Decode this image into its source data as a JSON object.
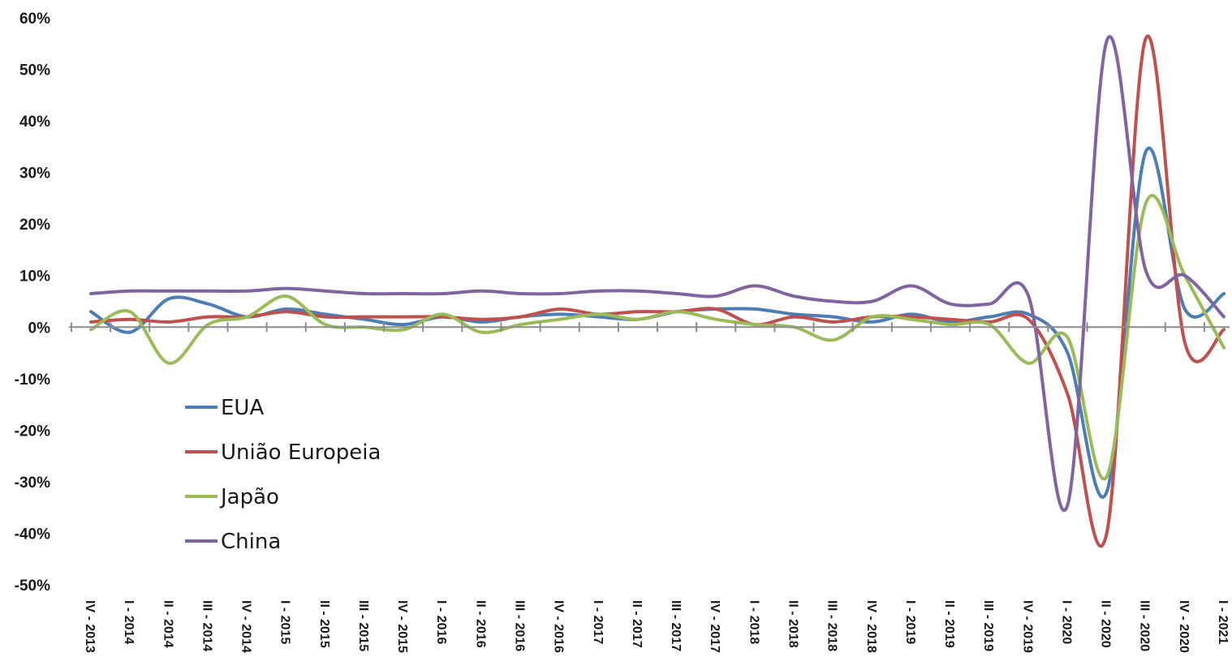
{
  "chart_data": {
    "type": "line",
    "title": "",
    "xlabel": "",
    "ylabel": "",
    "ylim": [
      -50,
      60
    ],
    "y_ticks": [
      60,
      50,
      40,
      30,
      20,
      10,
      0,
      -10,
      -20,
      -30,
      -40,
      -50
    ],
    "y_tick_labels": [
      "60%",
      "50%",
      "40%",
      "30%",
      "20%",
      "10%",
      "0%",
      "-10%",
      "-20%",
      "-30%",
      "-40%",
      "-50%"
    ],
    "grid": false,
    "legend_position": "bottom-left",
    "categories": [
      "IV - 2013",
      "I - 2014",
      "II - 2014",
      "III - 2014",
      "IV - 2014",
      "I - 2015",
      "II - 2015",
      "III - 2015",
      "IV - 2015",
      "I - 2016",
      "II - 2016",
      "III - 2016",
      "IV - 2016",
      "I - 2017",
      "II - 2017",
      "III - 2017",
      "IV - 2017",
      "I - 2018",
      "II - 2018",
      "III - 2018",
      "IV - 2018",
      "I - 2019",
      "II - 2019",
      "III - 2019",
      "IV - 2019",
      "I - 2020",
      "II - 2020",
      "III - 2020",
      "IV - 2020",
      "I - 2021"
    ],
    "series": [
      {
        "name": "EUA",
        "color": "#4a7eb5",
        "values": [
          3,
          -1,
          5.5,
          4.5,
          2,
          3.5,
          2.5,
          1.5,
          0.5,
          2,
          1,
          2,
          2.5,
          2,
          1.5,
          3,
          3.5,
          3.5,
          2.5,
          2,
          1,
          2.5,
          1,
          2,
          2.5,
          -5,
          -32,
          34,
          3.5,
          6.5
        ]
      },
      {
        "name": "União Europeia",
        "color": "#c0504d",
        "values": [
          1,
          1.5,
          1,
          2,
          2,
          3,
          2,
          2,
          2,
          2,
          1.5,
          2,
          3.5,
          2.5,
          3,
          3,
          3.5,
          0.5,
          2,
          1,
          2,
          2,
          1.5,
          1,
          1.5,
          -13,
          -40,
          56,
          -3,
          -0.5
        ]
      },
      {
        "name": "Japão",
        "color": "#9bbb59",
        "values": [
          -0.5,
          3,
          -7,
          0.5,
          2,
          6,
          0.5,
          0,
          -0.5,
          2.5,
          -1,
          0.5,
          1.5,
          2.5,
          1.5,
          3,
          1.5,
          0.5,
          0,
          -2.5,
          2,
          1.5,
          0.5,
          0.5,
          -7,
          -2,
          -29,
          24,
          10,
          -4
        ]
      },
      {
        "name": "China",
        "color": "#8064a2",
        "values": [
          6.5,
          7,
          7,
          7,
          7,
          7.5,
          7,
          6.5,
          6.5,
          6.5,
          7,
          6.5,
          6.5,
          7,
          7,
          6.5,
          6,
          8,
          6,
          5,
          5,
          8,
          4.5,
          4.5,
          6,
          -34.5,
          55.5,
          11,
          10,
          2
        ]
      }
    ]
  }
}
